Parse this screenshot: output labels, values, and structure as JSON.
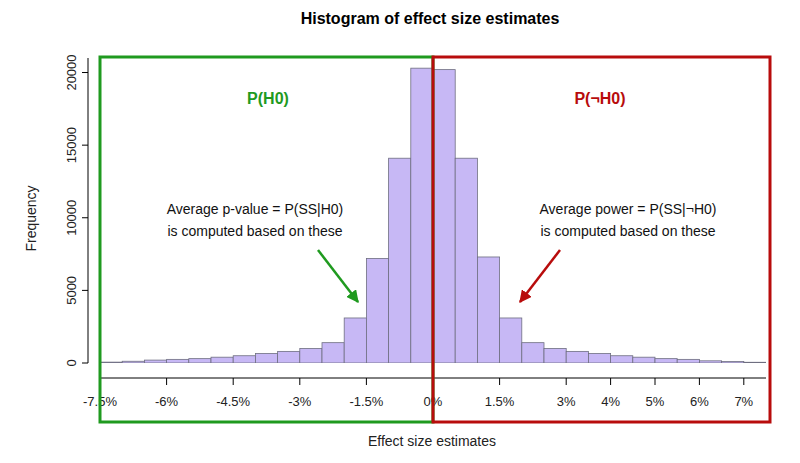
{
  "chart_data": {
    "type": "histogram",
    "title": "Histogram of effect size estimates",
    "x_label": "Effect size estimates",
    "y_label": "Frequency",
    "bins": [
      -7.5,
      -7,
      -6.5,
      -6,
      -5.5,
      -5,
      -4.5,
      -4,
      -3.5,
      -3,
      -2.5,
      -2,
      -1.5,
      -1,
      -0.5,
      0,
      0.5,
      1,
      1.5,
      2,
      2.5,
      3,
      3.5,
      4,
      4.5,
      5,
      5.5,
      6,
      6.5,
      7,
      7.5
    ],
    "values": [
      60,
      120,
      200,
      250,
      300,
      400,
      500,
      650,
      800,
      1000,
      1400,
      3100,
      7200,
      14100,
      20300,
      20200,
      14100,
      7300,
      3100,
      1400,
      1000,
      800,
      650,
      500,
      400,
      300,
      250,
      150,
      100,
      50
    ],
    "color": "#c7b8f5",
    "xlim": [
      -7.5,
      7.5
    ],
    "xticks": [
      {
        "value": -7.5,
        "label": "-7.5%"
      },
      {
        "value": -6,
        "label": "-6%"
      },
      {
        "value": -4.5,
        "label": "-4.5%"
      },
      {
        "value": -3,
        "label": "-3%"
      },
      {
        "value": -1.5,
        "label": "-1.5%"
      },
      {
        "value": 0,
        "label": "0%"
      },
      {
        "value": 1.5,
        "label": "1.5%"
      },
      {
        "value": 3,
        "label": "3%"
      },
      {
        "value": 4,
        "label": "4%"
      },
      {
        "value": 5,
        "label": "5%"
      },
      {
        "value": 6,
        "label": "6%"
      },
      {
        "value": 7,
        "label": "7%"
      }
    ],
    "ylim": [
      0,
      21000
    ],
    "yticks": [
      0,
      5000,
      10000,
      15000,
      20000
    ],
    "grid": false,
    "annotations": [
      {
        "text": "P(H0)",
        "color": "#1f9a1f"
      },
      {
        "text": "P(¬H0)",
        "color": "#b80c0c"
      },
      {
        "text": "Average p-value = P(SS|H0)"
      },
      {
        "text": "is computed based on these"
      },
      {
        "text": "Average power = P(SS|¬H0)"
      },
      {
        "text": "is computed based on these"
      }
    ]
  }
}
